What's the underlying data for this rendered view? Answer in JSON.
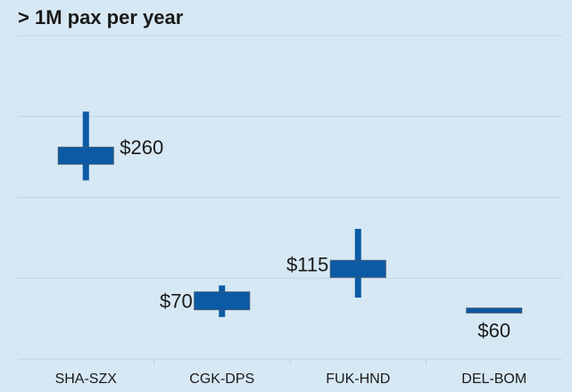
{
  "chart_data": {
    "type": "range",
    "title": "> 1M pax per year",
    "categories": [
      "SHA-SZX",
      "CGK-DPS",
      "FUK-HND",
      "DEL-BOM"
    ],
    "values": [
      260,
      70,
      115,
      60
    ],
    "value_labels": [
      "$260",
      "$70",
      "$115",
      "$60"
    ],
    "box_low": [
      241,
      61,
      101,
      57
    ],
    "box_high": [
      262,
      83,
      122,
      63
    ],
    "low": [
      221,
      52,
      76,
      null
    ],
    "high": [
      306,
      91,
      161,
      null
    ],
    "color": "#0b5aa6",
    "ylim": [
      0,
      400
    ],
    "yticks": [
      0,
      100,
      200,
      300,
      400
    ],
    "grid": true
  }
}
